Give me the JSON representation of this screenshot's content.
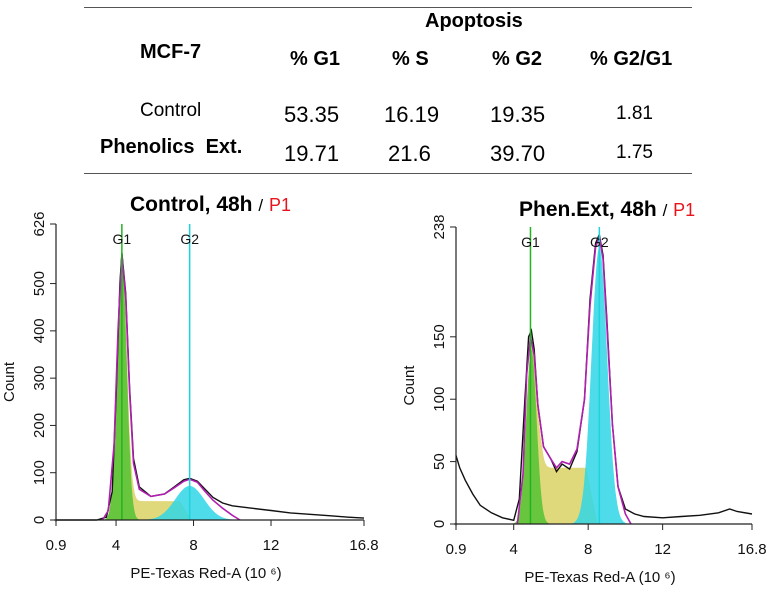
{
  "table": {
    "header_group": "Apoptosis",
    "cell_line": "MCF-7",
    "columns": [
      "% G1",
      "% S",
      "% G2",
      "% G2/G1"
    ],
    "rows": [
      {
        "label": "Control",
        "values": [
          "53.35",
          "16.19",
          "19.35",
          "1.81"
        ]
      },
      {
        "label": "Phenolics  Ext.",
        "values": [
          "19.71",
          "21.6",
          "39.70",
          "1.75"
        ]
      }
    ]
  },
  "colors": {
    "g1_fill": "#52c234",
    "s_fill": "#d8cf5a",
    "g2_fill": "#2fd6e6",
    "g1_line": "#22b322",
    "g2_line": "#1dd3dd",
    "fit_line": "#b01fb0",
    "data_line": "#111111",
    "gate_label": "#e8141b"
  },
  "chart_data": [
    {
      "type": "area",
      "title": "Control, 48h",
      "title_sep": "/",
      "gate": "P1",
      "xlabel": "PE-Texas Red-A  (10 ⁶)",
      "ylabel": "Count",
      "xlim": [
        0.9,
        16.8
      ],
      "ylim": [
        0,
        626
      ],
      "x_ticks": [
        "0.9",
        "4",
        "8",
        "12",
        "16.8"
      ],
      "x_tick_values": [
        0.9,
        4,
        8,
        12,
        16.8
      ],
      "y_ticks": [
        "0",
        "100",
        "200",
        "300",
        "400",
        "500",
        "626"
      ],
      "y_tick_values": [
        0,
        100,
        200,
        300,
        400,
        500,
        626
      ],
      "markers": [
        {
          "label": "G1",
          "x": 4.3
        },
        {
          "label": "G2",
          "x": 7.8
        }
      ],
      "histogram": [
        [
          0.9,
          0
        ],
        [
          3,
          0
        ],
        [
          3.5,
          6
        ],
        [
          3.8,
          60
        ],
        [
          4,
          260
        ],
        [
          4.2,
          500
        ],
        [
          4.3,
          565
        ],
        [
          4.5,
          480
        ],
        [
          4.7,
          280
        ],
        [
          4.9,
          130
        ],
        [
          5.2,
          70
        ],
        [
          5.8,
          50
        ],
        [
          6.5,
          55
        ],
        [
          7,
          70
        ],
        [
          7.5,
          85
        ],
        [
          7.8,
          88
        ],
        [
          8.2,
          82
        ],
        [
          8.6,
          65
        ],
        [
          9,
          48
        ],
        [
          9.5,
          36
        ],
        [
          10,
          30
        ],
        [
          11,
          25
        ],
        [
          12,
          20
        ],
        [
          13,
          15
        ],
        [
          14,
          12
        ],
        [
          15,
          9
        ],
        [
          16,
          6
        ],
        [
          16.8,
          4
        ]
      ],
      "fit": [
        [
          3.3,
          0
        ],
        [
          3.6,
          20
        ],
        [
          3.9,
          160
        ],
        [
          4.1,
          400
        ],
        [
          4.3,
          560
        ],
        [
          4.5,
          470
        ],
        [
          4.7,
          270
        ],
        [
          4.9,
          120
        ],
        [
          5.2,
          65
        ],
        [
          5.8,
          50
        ],
        [
          6.5,
          55
        ],
        [
          7,
          68
        ],
        [
          7.5,
          82
        ],
        [
          7.8,
          86
        ],
        [
          8.2,
          80
        ],
        [
          8.6,
          60
        ],
        [
          9,
          42
        ],
        [
          9.5,
          25
        ],
        [
          10,
          10
        ],
        [
          10.4,
          0
        ]
      ],
      "g1_peak": {
        "mean": 4.3,
        "sd": 0.25,
        "height": 560
      },
      "g2_peak": {
        "mean": 7.8,
        "sd": 0.75,
        "height": 72
      },
      "s_phase": {
        "start": 4.5,
        "end": 7.6,
        "level": 40
      }
    },
    {
      "type": "area",
      "title": "Phen.Ext, 48h",
      "title_sep": "/",
      "gate": "P1",
      "xlabel": "PE-Texas Red-A  (10 ⁶)",
      "ylabel": "Count",
      "xlim": [
        0.9,
        16.8
      ],
      "ylim": [
        0,
        238
      ],
      "x_ticks": [
        "0.9",
        "4",
        "8",
        "12",
        "16.8"
      ],
      "x_tick_values": [
        0.9,
        4,
        8,
        12,
        16.8
      ],
      "y_ticks": [
        "0",
        "50",
        "100",
        "150",
        "238"
      ],
      "y_tick_values": [
        0,
        50,
        100,
        150,
        238
      ],
      "markers": [
        {
          "label": "G1",
          "x": 4.9
        },
        {
          "label": "G2",
          "x": 8.6
        }
      ],
      "histogram": [
        [
          0.9,
          55
        ],
        [
          1.1,
          45
        ],
        [
          1.4,
          35
        ],
        [
          1.8,
          24
        ],
        [
          2.2,
          15
        ],
        [
          2.8,
          9
        ],
        [
          3.4,
          5
        ],
        [
          4,
          3
        ],
        [
          4.3,
          20
        ],
        [
          4.6,
          100
        ],
        [
          4.8,
          150
        ],
        [
          4.95,
          155
        ],
        [
          5.1,
          140
        ],
        [
          5.3,
          95
        ],
        [
          5.6,
          62
        ],
        [
          6,
          52
        ],
        [
          6.3,
          42
        ],
        [
          6.6,
          48
        ],
        [
          7,
          44
        ],
        [
          7.4,
          58
        ],
        [
          7.8,
          100
        ],
        [
          8.1,
          180
        ],
        [
          8.4,
          225
        ],
        [
          8.6,
          232
        ],
        [
          8.8,
          215
        ],
        [
          9,
          165
        ],
        [
          9.3,
          80
        ],
        [
          9.6,
          30
        ],
        [
          10,
          12
        ],
        [
          10.5,
          8
        ],
        [
          11,
          6
        ],
        [
          12,
          5
        ],
        [
          13,
          6
        ],
        [
          14,
          7
        ],
        [
          15,
          9
        ],
        [
          15.6,
          12
        ],
        [
          16,
          10
        ],
        [
          16.8,
          8
        ]
      ],
      "fit": [
        [
          4.2,
          0
        ],
        [
          4.5,
          40
        ],
        [
          4.7,
          120
        ],
        [
          4.9,
          150
        ],
        [
          5.1,
          135
        ],
        [
          5.3,
          95
        ],
        [
          5.6,
          62
        ],
        [
          6,
          52
        ],
        [
          6.3,
          45
        ],
        [
          6.6,
          50
        ],
        [
          7,
          48
        ],
        [
          7.4,
          60
        ],
        [
          7.8,
          100
        ],
        [
          8.1,
          175
        ],
        [
          8.4,
          222
        ],
        [
          8.6,
          230
        ],
        [
          8.8,
          212
        ],
        [
          9,
          160
        ],
        [
          9.3,
          80
        ],
        [
          9.6,
          30
        ],
        [
          10,
          8
        ],
        [
          10.3,
          0
        ]
      ],
      "g1_peak": {
        "mean": 4.95,
        "sd": 0.28,
        "height": 140
      },
      "g2_peak": {
        "mean": 8.6,
        "sd": 0.42,
        "height": 222
      },
      "s_phase": {
        "start": 5.2,
        "end": 8.2,
        "level": 45
      }
    }
  ]
}
